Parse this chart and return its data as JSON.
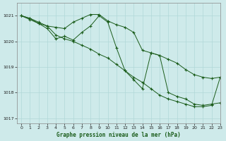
{
  "title": "Graphe pression niveau de la mer (hPa)",
  "background_color": "#ceeaea",
  "grid_color": "#b0d8d8",
  "line_color": "#1a5c1a",
  "xlim": [
    -0.5,
    23
  ],
  "ylim": [
    1016.8,
    1021.5
  ],
  "yticks": [
    1017,
    1018,
    1019,
    1020,
    1021
  ],
  "xticks": [
    0,
    1,
    2,
    3,
    4,
    5,
    6,
    7,
    8,
    9,
    10,
    11,
    12,
    13,
    14,
    15,
    16,
    17,
    18,
    19,
    20,
    21,
    22,
    23
  ],
  "series": [
    {
      "x": [
        0,
        1,
        2,
        3,
        4,
        5,
        6,
        7,
        8,
        9,
        10,
        11,
        12,
        13,
        14,
        15,
        16,
        17,
        18,
        19,
        20,
        21,
        22,
        23
      ],
      "y": [
        1021.0,
        1020.85,
        1020.7,
        1020.6,
        1020.55,
        1020.5,
        1020.75,
        1020.9,
        1021.05,
        1021.05,
        1020.8,
        1020.65,
        1020.55,
        1020.35,
        1019.65,
        1019.55,
        1019.45,
        1019.3,
        1019.15,
        1018.9,
        1018.7,
        1018.6,
        1018.55,
        1018.6
      ]
    },
    {
      "x": [
        0,
        1,
        2,
        3,
        4,
        5,
        6,
        7,
        8,
        9,
        10,
        11,
        12,
        13,
        14,
        15,
        16,
        17,
        18,
        19,
        20,
        21,
        22,
        23
      ],
      "y": [
        1021.0,
        1020.9,
        1020.7,
        1020.5,
        1020.1,
        1020.2,
        1020.05,
        1020.35,
        1020.6,
        1021.0,
        1020.75,
        1019.75,
        1018.85,
        1018.5,
        1018.15,
        1019.55,
        1019.45,
        1018.0,
        1017.85,
        1017.75,
        1017.55,
        1017.5,
        1017.55,
        1017.6
      ]
    },
    {
      "x": [
        0,
        1,
        2,
        3,
        4,
        5,
        6,
        7,
        8,
        9,
        10,
        11,
        12,
        13,
        14,
        15,
        16,
        17,
        18,
        19,
        20,
        21,
        22,
        23
      ],
      "y": [
        1021.0,
        1020.9,
        1020.75,
        1020.6,
        1020.25,
        1020.1,
        1020.0,
        1019.85,
        1019.7,
        1019.5,
        1019.35,
        1019.1,
        1018.85,
        1018.6,
        1018.4,
        1018.15,
        1017.9,
        1017.75,
        1017.65,
        1017.55,
        1017.45,
        1017.45,
        1017.5,
        1018.6
      ]
    }
  ]
}
